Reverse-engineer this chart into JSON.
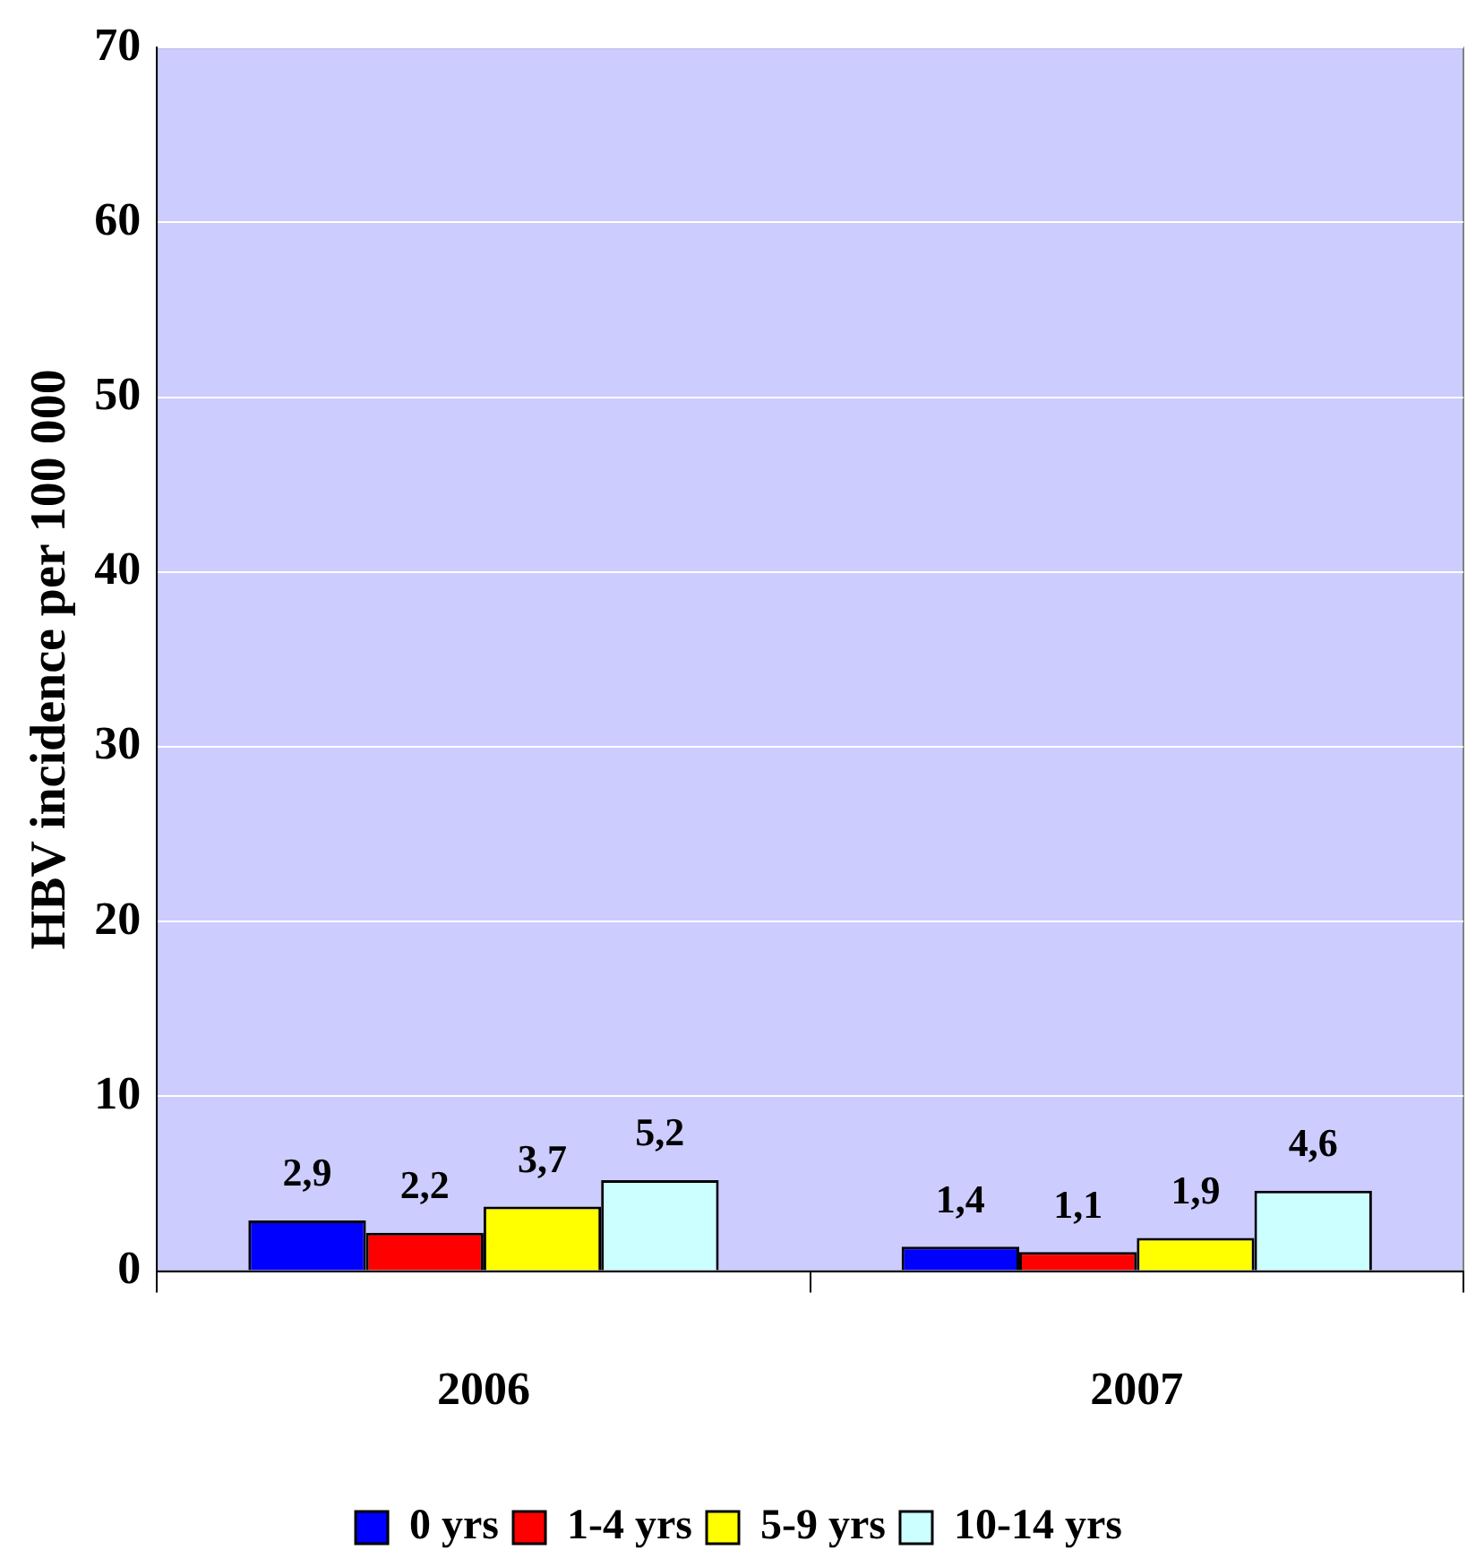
{
  "chart_data": {
    "type": "bar",
    "ylabel": "HBV incidence per 100 000",
    "categories": [
      "2006",
      "2007"
    ],
    "series": [
      {
        "name": "0 yrs",
        "color": "#0000ff",
        "values": [
          2.9,
          1.4
        ],
        "value_labels": [
          "2,9",
          "1,4"
        ]
      },
      {
        "name": "1-4 yrs",
        "color": "#ff0000",
        "values": [
          2.2,
          1.1
        ],
        "value_labels": [
          "2,2",
          "1,1"
        ]
      },
      {
        "name": "5-9 yrs",
        "color": "#ffff00",
        "values": [
          3.7,
          1.9
        ],
        "value_labels": [
          "3,7",
          "1,9"
        ]
      },
      {
        "name": "10-14 yrs",
        "color": "#ccffff",
        "values": [
          5.2,
          4.6
        ],
        "value_labels": [
          "5,2",
          "4,6"
        ]
      }
    ],
    "ylim": [
      0,
      70
    ],
    "yticks": [
      0,
      10,
      20,
      30,
      40,
      50,
      60,
      70
    ],
    "grid": "y",
    "legend": "bottom"
  }
}
